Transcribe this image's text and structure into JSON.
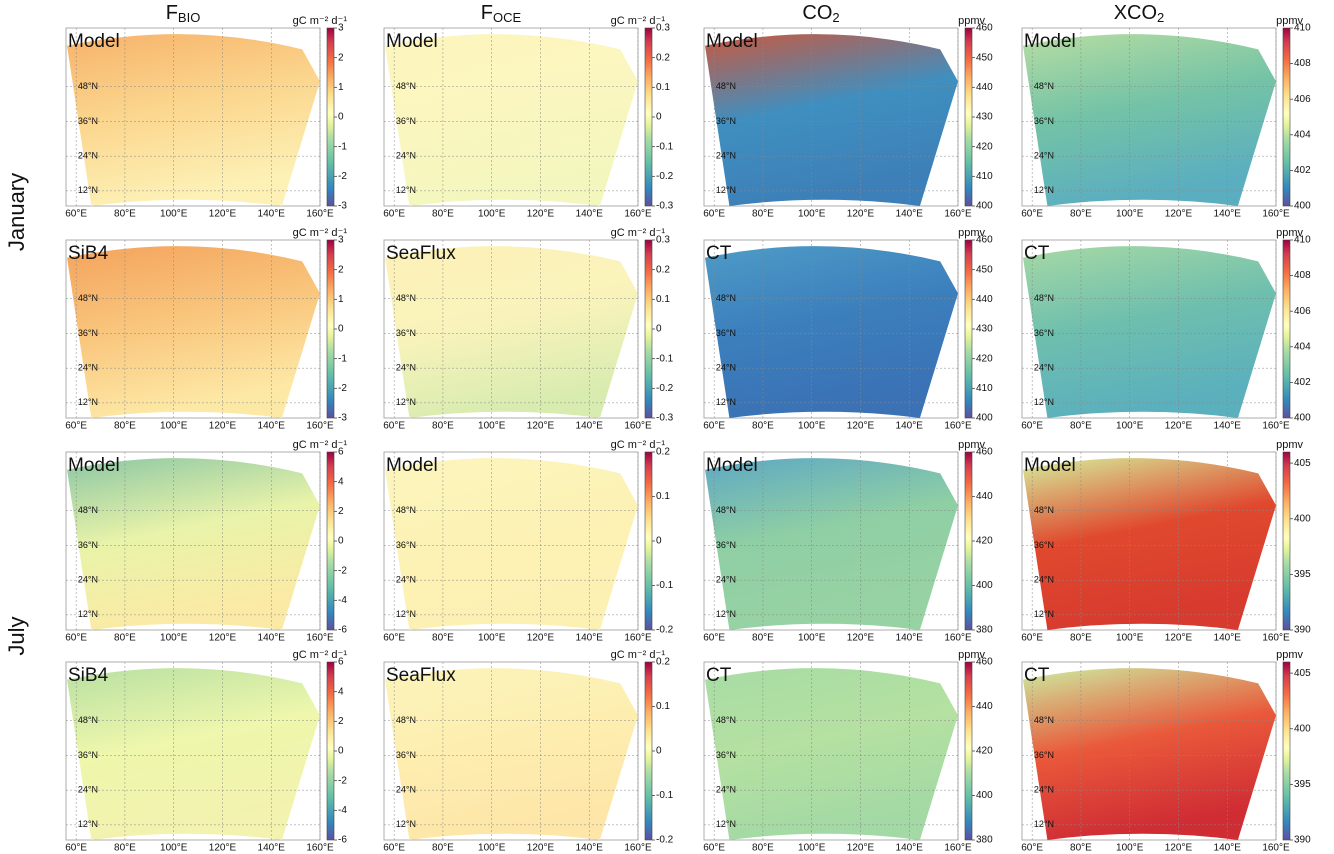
{
  "column_titles": [
    {
      "main": "F",
      "sub": "BIO"
    },
    {
      "main": "F",
      "sub": "OCE"
    },
    {
      "main": "CO",
      "sub": "2"
    },
    {
      "main": "XCO",
      "sub": "2"
    }
  ],
  "row_groups": [
    "January",
    "July"
  ],
  "lon_ticks": [
    "60°E",
    "80°E",
    "100°E",
    "120°E",
    "140°E",
    "160°E"
  ],
  "lat_ticks": [
    "48°N",
    "36°N",
    "24°N",
    "12°N"
  ],
  "panels": [
    {
      "label": "Model",
      "unit": "gC m⁻² d⁻¹",
      "clim": [
        -3,
        3
      ],
      "ticks": [
        -3,
        -2,
        -1,
        0,
        1,
        2,
        3
      ]
    },
    {
      "label": "Model",
      "unit": "gC m⁻² d⁻¹",
      "clim": [
        -0.3,
        0.3
      ],
      "ticks": [
        -0.3,
        -0.2,
        -0.1,
        0,
        0.1,
        0.2,
        0.3
      ]
    },
    {
      "label": "Model",
      "unit": "ppmv",
      "clim": [
        400,
        460
      ],
      "ticks": [
        400,
        410,
        420,
        430,
        440,
        450,
        460
      ]
    },
    {
      "label": "Model",
      "unit": "ppmv",
      "clim": [
        400,
        410
      ],
      "ticks": [
        400,
        402,
        404,
        406,
        408,
        410
      ]
    },
    {
      "label": "SiB4",
      "unit": "gC m⁻² d⁻¹",
      "clim": [
        -3,
        3
      ],
      "ticks": [
        -3,
        -2,
        -1,
        0,
        1,
        2,
        3
      ]
    },
    {
      "label": "SeaFlux",
      "unit": "gC m⁻² d⁻¹",
      "clim": [
        -0.3,
        0.3
      ],
      "ticks": [
        -0.3,
        -0.2,
        -0.1,
        0,
        0.1,
        0.2,
        0.3
      ]
    },
    {
      "label": "CT",
      "unit": "ppmv",
      "clim": [
        400,
        460
      ],
      "ticks": [
        400,
        410,
        420,
        430,
        440,
        450,
        460
      ]
    },
    {
      "label": "CT",
      "unit": "ppmv",
      "clim": [
        400,
        410
      ],
      "ticks": [
        400,
        402,
        404,
        406,
        408,
        410
      ]
    },
    {
      "label": "Model",
      "unit": "gC m⁻² d⁻¹",
      "clim": [
        -6,
        6
      ],
      "ticks": [
        -6,
        -4,
        -2,
        0,
        2,
        4,
        6
      ]
    },
    {
      "label": "Model",
      "unit": "gC m⁻² d⁻¹",
      "clim": [
        -0.2,
        0.2
      ],
      "ticks": [
        -0.2,
        -0.1,
        0,
        0.1,
        0.2
      ]
    },
    {
      "label": "Model",
      "unit": "ppmv",
      "clim": [
        380,
        460
      ],
      "ticks": [
        380,
        400,
        420,
        440,
        460
      ]
    },
    {
      "label": "Model",
      "unit": "ppmv",
      "clim": [
        390,
        406
      ],
      "ticks": [
        390,
        395,
        400,
        405
      ]
    },
    {
      "label": "SiB4",
      "unit": "gC m⁻² d⁻¹",
      "clim": [
        -6,
        6
      ],
      "ticks": [
        -6,
        -4,
        -2,
        0,
        2,
        4,
        6
      ]
    },
    {
      "label": "SeaFlux",
      "unit": "gC m⁻² d⁻¹",
      "clim": [
        -0.2,
        0.2
      ],
      "ticks": [
        -0.2,
        -0.1,
        0,
        0.1,
        0.2
      ]
    },
    {
      "label": "CT",
      "unit": "ppmv",
      "clim": [
        380,
        460
      ],
      "ticks": [
        380,
        400,
        420,
        440,
        460
      ]
    },
    {
      "label": "CT",
      "unit": "ppmv",
      "clim": [
        390,
        406
      ],
      "ticks": [
        390,
        395,
        400,
        405
      ]
    }
  ]
}
